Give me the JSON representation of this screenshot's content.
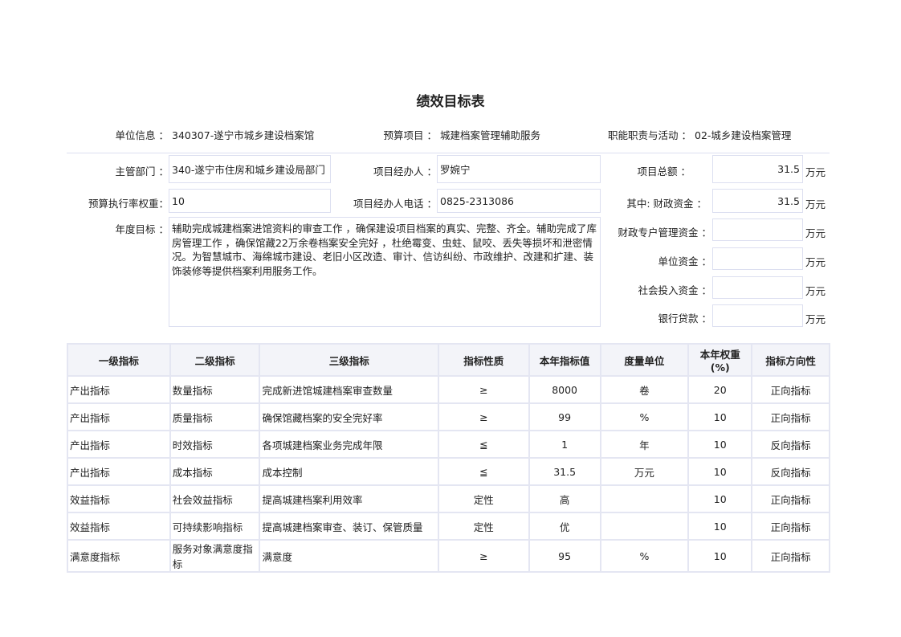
{
  "title": "绩效目标表",
  "info": {
    "unit_label": "单位信息 ：",
    "unit_value": "340307-遂宁市城乡建设档案馆",
    "project_label": "预算项目 ：",
    "project_value": "城建档案管理辅助服务",
    "duty_label": "职能职责与活动 ：",
    "duty_value": "02-城乡建设档案管理",
    "dept_label": "主管部门 ：",
    "dept_value": "340-遂宁市住房和城乡建设局部门",
    "manager_label": "项目经办人 ：",
    "manager_value": "罗婉宁",
    "total_label": "项目总额 ：",
    "total_value": "31.5",
    "weight_label": "预算执行率权重：",
    "weight_value": "10",
    "phone_label": "项目经办人电话 ：",
    "phone_value": "0825-2313086",
    "fiscal_label": "其中:  财政资金 ：",
    "fiscal_value": "31.5",
    "goal_label": "年度目标 ：",
    "goal_value": "辅助完成城建档案进馆资料的审查工作 ，确保建设项目档案的真实、完整、齐全。辅助完成了库房管理工作 ，确保馆藏22万余卷档案安全完好 ，杜绝霉变、虫蛀、鼠咬、丢失等损坏和泄密情况。为智慧城市、海绵城市建设、老旧小区改造、审计、信访纠纷、市政维护、改建和扩建、装饰装修等提供档案利用服务工作。",
    "special_label": "财政专户管理资金 ：",
    "special_value": "",
    "own_label": "单位资金 ：",
    "own_value": "",
    "social_label": "社会投入资金 ：",
    "social_value": "",
    "loan_label": "银行贷款 ：",
    "loan_value": "",
    "unit_wan": "万元"
  },
  "table": {
    "headers": [
      "一级指标",
      "二级指标",
      "三级指标",
      "指标性质",
      "本年指标值",
      "度量单位",
      "本年权重(%)",
      "指标方向性"
    ],
    "rows": [
      [
        "产出指标",
        "数量指标",
        "完成新进馆城建档案审查数量",
        "≥",
        "8000",
        "卷",
        "20",
        "正向指标"
      ],
      [
        "产出指标",
        "质量指标",
        "确保馆藏档案的安全完好率",
        "≥",
        "99",
        "%",
        "10",
        "正向指标"
      ],
      [
        "产出指标",
        "时效指标",
        "各项城建档案业务完成年限",
        "≦",
        "1",
        "年",
        "10",
        "反向指标"
      ],
      [
        "产出指标",
        "成本指标",
        "成本控制",
        "≦",
        "31.5",
        "万元",
        "10",
        "反向指标"
      ],
      [
        "效益指标",
        "社会效益指标",
        "提高城建档案利用效率",
        "定性",
        "高",
        "",
        "10",
        "正向指标"
      ],
      [
        "效益指标",
        "可持续影响指标",
        "提高城建档案审查、装订、保管质量",
        "定性",
        "优",
        "",
        "10",
        "正向指标"
      ],
      [
        "满意度指标",
        "服务对象满意度指标",
        "满意度",
        "≥",
        "95",
        "%",
        "10",
        "正向指标"
      ]
    ]
  }
}
